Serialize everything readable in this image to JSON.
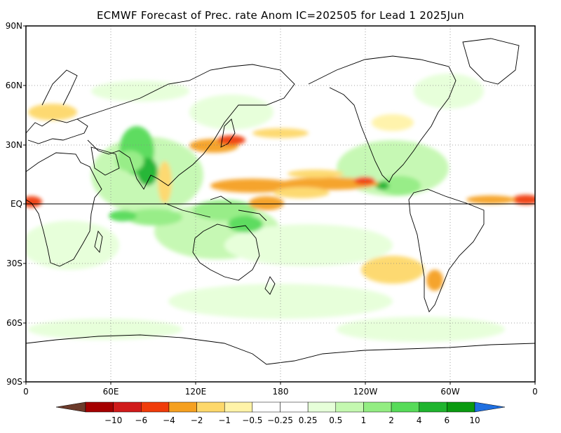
{
  "title": "ECMWF Forecast of Prec. rate Anom IC=202505 for Lead 1 2025Jun",
  "map": {
    "lat_labels": [
      "90N",
      "60N",
      "30N",
      "EQ",
      "30S",
      "60S",
      "90S"
    ],
    "lon_labels": [
      "0",
      "60E",
      "120E",
      "180",
      "120W",
      "60W",
      "0"
    ]
  },
  "colorbar": {
    "colors": [
      "#6b3a2a",
      "#a50000",
      "#d01a1a",
      "#f03c0a",
      "#f5a020",
      "#fdd86b",
      "#fff3a8",
      "#ffffff",
      "#ffffff",
      "#e6ffd9",
      "#c4f8b0",
      "#93ed82",
      "#57db59",
      "#1fb42e",
      "#0a9a10",
      "#1f6fe0"
    ],
    "labels": [
      "-10",
      "-6",
      "-4",
      "-2",
      "-1",
      "-0.5",
      "-0.25",
      "0.25",
      "0.5",
      "1",
      "2",
      "4",
      "6",
      "10"
    ]
  }
}
